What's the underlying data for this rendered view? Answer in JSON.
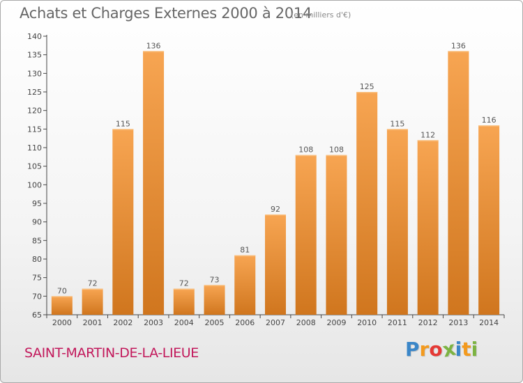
{
  "chart_data": {
    "type": "bar",
    "title": "Achats et Charges Externes 2000 à 2014",
    "subtitle": "(en milliers d'€)",
    "categories": [
      "2000",
      "2001",
      "2002",
      "2003",
      "2004",
      "2005",
      "2006",
      "2007",
      "2008",
      "2009",
      "2010",
      "2011",
      "2012",
      "2013",
      "2014"
    ],
    "values": [
      70,
      72,
      115,
      136,
      72,
      73,
      81,
      92,
      108,
      108,
      125,
      115,
      112,
      136,
      116
    ],
    "data_labels": [
      "70",
      "72",
      "115",
      "136",
      "72",
      "73",
      "81",
      "92",
      "108",
      "108",
      "125",
      "115",
      "112",
      "136",
      "116"
    ],
    "ylim": [
      65,
      140
    ],
    "yticks": [
      65,
      70,
      75,
      80,
      85,
      90,
      95,
      100,
      105,
      110,
      115,
      120,
      125,
      130,
      135,
      140
    ],
    "grid": false,
    "legend": "none",
    "bar_color_top": "#f7a552",
    "bar_color_bottom": "#d0761e"
  },
  "footer": {
    "place": "SAINT-MARTIN-DE-LA-LIEUE",
    "place_color": "#c2185b"
  },
  "brand": {
    "letters": [
      {
        "char": "P",
        "color": "#3a86c8"
      },
      {
        "char": "r",
        "color": "#f39a1e"
      },
      {
        "char": "o",
        "color": "#e53935"
      },
      {
        "char": "x",
        "color": "#7cb342"
      },
      {
        "char": "i",
        "color": "#3a86c8"
      },
      {
        "char": "t",
        "color": "#f39a1e"
      },
      {
        "char": "i",
        "color": "#7cb342"
      }
    ]
  }
}
